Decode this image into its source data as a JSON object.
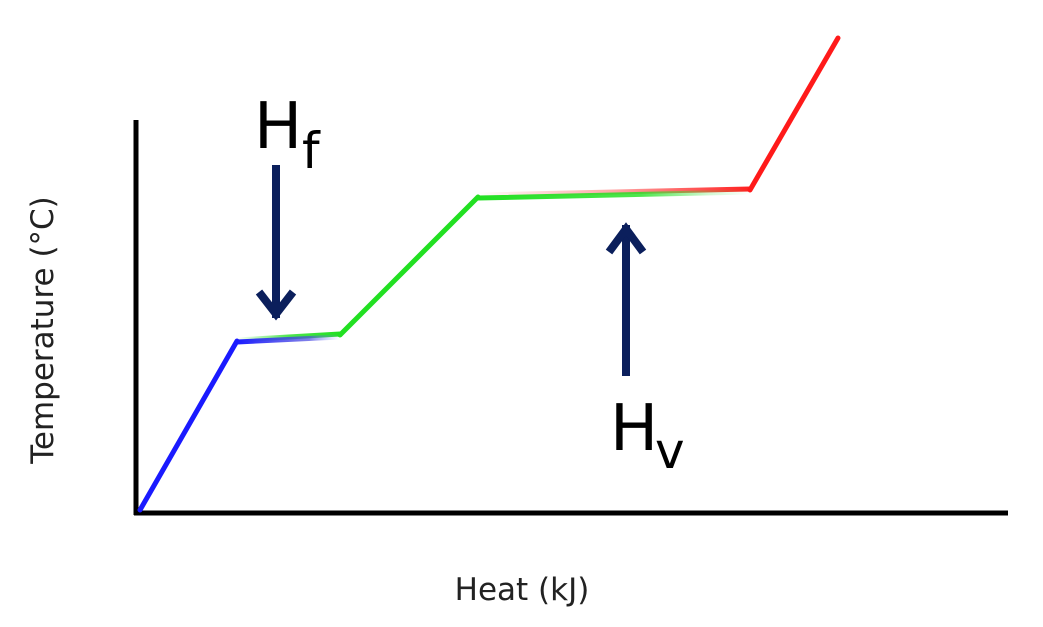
{
  "labels": {
    "x_axis": "Heat (kJ)",
    "y_axis": "Temperature (°C)"
  },
  "annotations": [
    {
      "main": "H",
      "sub": "f"
    },
    {
      "main": "H",
      "sub": "v"
    }
  ]
}
